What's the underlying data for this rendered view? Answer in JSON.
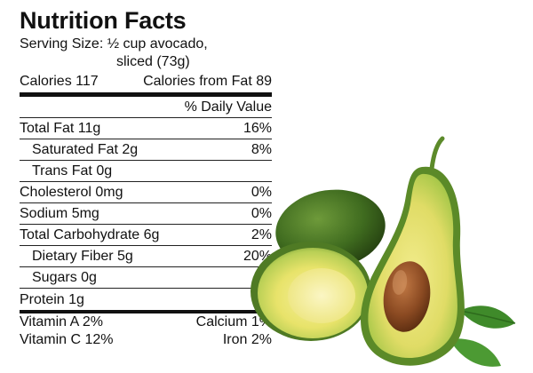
{
  "label": {
    "title": "Nutrition Facts",
    "serving_line1": "Serving Size: ½ cup avocado,",
    "serving_line2": "sliced (73g)",
    "calories": "Calories 117",
    "calories_from_fat": "Calories from Fat 89",
    "dv_header": "% Daily Value",
    "rows": [
      {
        "name": "Total Fat 11g",
        "dv": "16%"
      },
      {
        "name": "Saturated Fat 2g",
        "dv": "8%"
      },
      {
        "name": "Trans Fat 0g",
        "dv": ""
      },
      {
        "name": "Cholesterol 0mg",
        "dv": "0%"
      },
      {
        "name": "Sodium 5mg",
        "dv": "0%"
      },
      {
        "name": "Total Carbohydrate 6g",
        "dv": "2%"
      },
      {
        "name": "Dietary Fiber 5g",
        "dv": "20%"
      },
      {
        "name": "Sugars 0g",
        "dv": ""
      },
      {
        "name": "Protein 1g",
        "dv": ""
      }
    ],
    "vitamins": [
      {
        "left": "Vitamin A 2%",
        "right": "Calcium 1%"
      },
      {
        "left": "Vitamin C 12%",
        "right": "Iron 2%"
      }
    ]
  },
  "image": {
    "subject": "avocado-halves",
    "colors": {
      "skin_dark": "#3f6b1f",
      "flesh_yellow": "#e8e36a",
      "flesh_green": "#a9c84a",
      "pit": "#8b4a22",
      "leaf": "#3f8a2a"
    }
  }
}
